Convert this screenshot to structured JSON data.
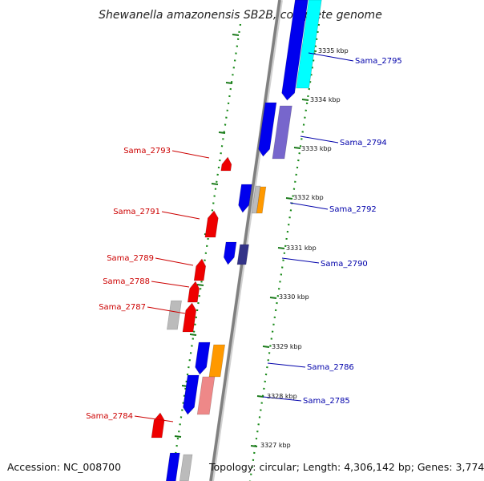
{
  "title": "Shewanella amazonensis SB2B, complete genome",
  "footer": {
    "accession": "Accession: NC_008700",
    "summary": "Topology: circular; Length: 4,306,142 bp; Genes: 3,774"
  },
  "colors": {
    "backbone": "#8a8a8a",
    "tick_dots": "#1a7a1a",
    "left_label": "#cc0000",
    "right_label": "#0000aa",
    "gene_red": "#ee0000",
    "gene_blue": "#0000ee",
    "gene_cyan": "#00ffff",
    "gene_purple": "#7766cc",
    "gene_orange": "#ff9900",
    "gene_pink": "#ee8888",
    "gene_gray": "#bbbbbb",
    "gene_navy": "#333388"
  },
  "ticks": [
    {
      "label": "3335 kbp"
    },
    {
      "label": "3334 kbp"
    },
    {
      "label": "3333 kbp"
    },
    {
      "label": "3332 kbp"
    },
    {
      "label": "3331 kbp"
    },
    {
      "label": "3330 kbp"
    },
    {
      "label": "3329 kbp"
    },
    {
      "label": "3328 kbp"
    },
    {
      "label": "3327 kbp"
    }
  ],
  "left_genes": [
    {
      "label": "Sama_2793"
    },
    {
      "label": "Sama_2791"
    },
    {
      "label": "Sama_2789"
    },
    {
      "label": "Sama_2788"
    },
    {
      "label": "Sama_2787"
    },
    {
      "label": "Sama_2784"
    }
  ],
  "right_genes": [
    {
      "label": "Sama_2795"
    },
    {
      "label": "Sama_2794"
    },
    {
      "label": "Sama_2792"
    },
    {
      "label": "Sama_2790"
    },
    {
      "label": "Sama_2786"
    },
    {
      "label": "Sama_2785"
    }
  ]
}
